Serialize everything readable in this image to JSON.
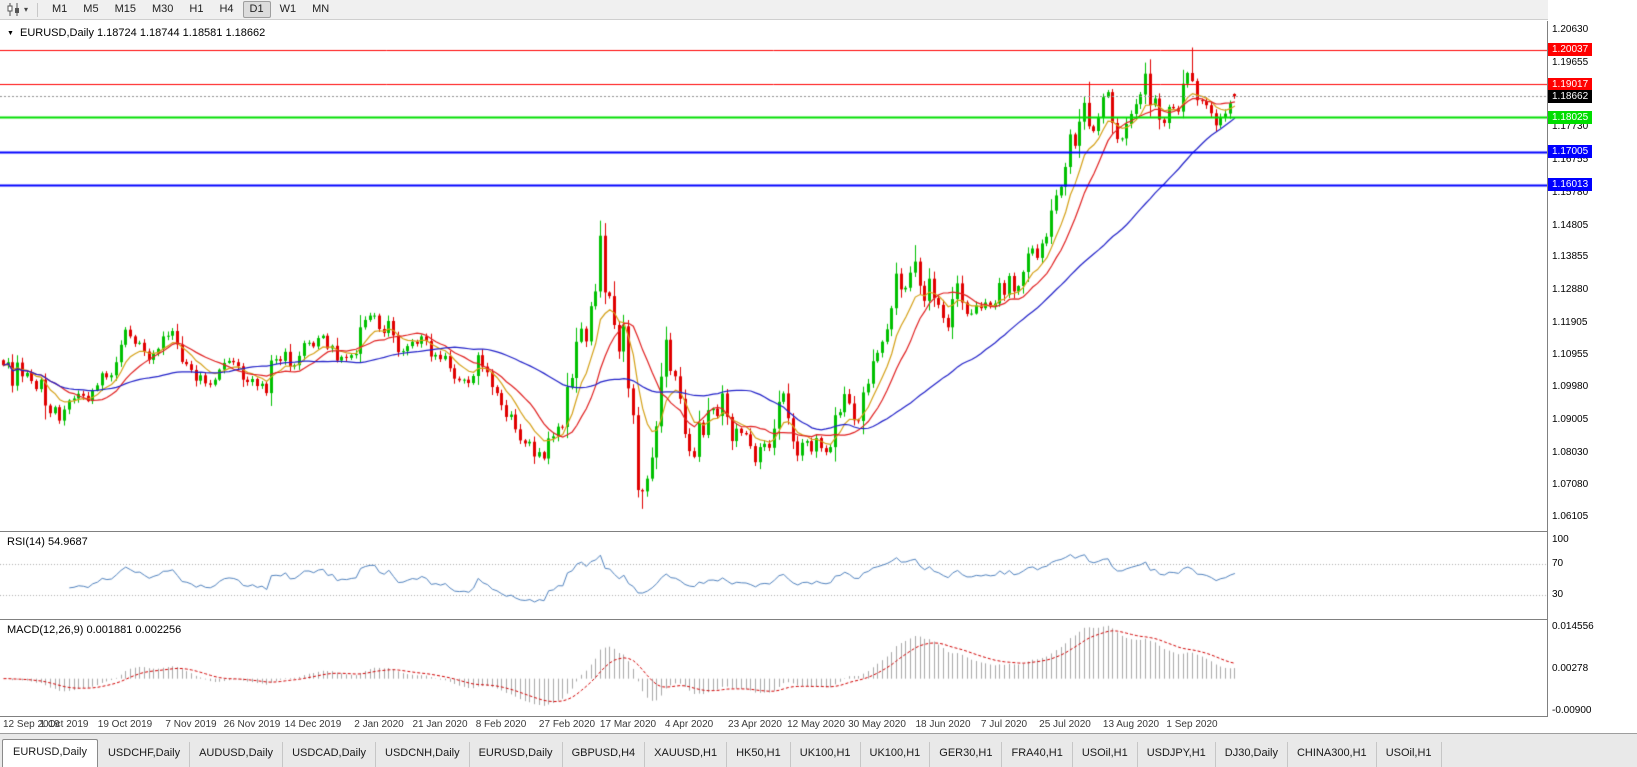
{
  "toolbar": {
    "chart_icon": "candlestick-chart",
    "caret_glyph": "▾",
    "timeframes": [
      "M1",
      "M5",
      "M15",
      "M30",
      "H1",
      "H4",
      "D1",
      "W1",
      "MN"
    ],
    "active_timeframe": "D1"
  },
  "tabs": {
    "active_index": 0,
    "items": [
      "EURUSD,Daily",
      "USDCHF,Daily",
      "AUDUSD,Daily",
      "USDCAD,Daily",
      "USDCNH,Daily",
      "EURUSD,Daily",
      "GBPUSD,H4",
      "XAUUSD,H1",
      "HK50,H1",
      "UK100,H1",
      "UK100,H1",
      "GER30,H1",
      "FRA40,H1",
      "USOil,H1",
      "USDJPY,H1",
      "DJ30,Daily",
      "CHINA300,H1",
      "USOil,H1"
    ]
  },
  "chart_data": {
    "type": "candlestick",
    "symbol": "EURUSD",
    "period": "Daily",
    "collapse_glyph": "▼",
    "header_text": "EURUSD,Daily 1.18724 1.18744 1.18581 1.18662",
    "current": {
      "open": 1.18724,
      "high": 1.18744,
      "low": 1.18581,
      "close": 1.18662
    },
    "ylim": [
      1.209,
      1.057
    ],
    "bar_width": 4.7,
    "x_offset": 3,
    "up_color": "#00C000",
    "down_color": "#E00000",
    "y_ticks": [
      "1.20630",
      "1.19655",
      "1.18680",
      "1.17730",
      "1.16755",
      "1.15780",
      "1.14805",
      "1.13855",
      "1.12880",
      "1.11905",
      "1.10955",
      "1.09980",
      "1.09005",
      "1.08030",
      "1.07080",
      "1.06105"
    ],
    "x_labels": [
      {
        "i": 0,
        "label": "12 Sep 2019"
      },
      {
        "i": 13,
        "label": "1 Oct 2019"
      },
      {
        "i": 26,
        "label": "19 Oct 2019"
      },
      {
        "i": 40,
        "label": "7 Nov 2019"
      },
      {
        "i": 53,
        "label": "26 Nov 2019"
      },
      {
        "i": 66,
        "label": "14 Dec 2019"
      },
      {
        "i": 80,
        "label": "2 Jan 2020"
      },
      {
        "i": 93,
        "label": "21 Jan 2020"
      },
      {
        "i": 106,
        "label": "8 Feb 2020"
      },
      {
        "i": 120,
        "label": "27 Feb 2020"
      },
      {
        "i": 133,
        "label": "17 Mar 2020"
      },
      {
        "i": 146,
        "label": "4 Apr 2020"
      },
      {
        "i": 160,
        "label": "23 Apr 2020"
      },
      {
        "i": 173,
        "label": "12 May 2020"
      },
      {
        "i": 186,
        "label": "30 May 2020"
      },
      {
        "i": 200,
        "label": "18 Jun 2020"
      },
      {
        "i": 213,
        "label": "7 Jul 2020"
      },
      {
        "i": 226,
        "label": "25 Jul 2020"
      },
      {
        "i": 240,
        "label": "13 Aug 2020"
      },
      {
        "i": 253,
        "label": "1 Sep 2020"
      }
    ],
    "hlines": [
      {
        "price": 1.20037,
        "label": "1.20037",
        "color": "#FF0000",
        "width": 1
      },
      {
        "price": 1.19017,
        "label": "1.19017",
        "color": "#FF0000",
        "width": 1
      },
      {
        "price": 1.18025,
        "label": "1.18025",
        "color": "#00DD00",
        "width": 2
      },
      {
        "price": 1.17005,
        "label": "1.17005",
        "color": "#0000FF",
        "width": 2
      },
      {
        "price": 1.16013,
        "label": "1.16013",
        "color": "#0000FF",
        "width": 2
      }
    ],
    "bid": {
      "price": 1.18662,
      "label": "1.18662",
      "tag_color": "#000000",
      "line_color": "#909090"
    },
    "mas": [
      {
        "kind": "ema",
        "period": 8,
        "color": "#D4A017"
      },
      {
        "kind": "sma",
        "period": 13,
        "color": "#E02020"
      },
      {
        "kind": "sma",
        "period": 40,
        "color": "#2020C8"
      }
    ],
    "candles": {
      "seed": 7,
      "closes": [
        1.1064,
        1.1073,
        1.1003,
        1.1072,
        1.1031,
        1.1041,
        1.1017,
        1.0993,
        1.1021,
        1.0944,
        1.0921,
        1.0939,
        1.0899,
        1.0932,
        1.0959,
        1.0965,
        1.0979,
        1.0973,
        1.0957,
        1.0989,
        1.1004,
        1.104,
        1.1028,
        1.1034,
        1.1073,
        1.1125,
        1.117,
        1.115,
        1.1128,
        1.1131,
        1.1105,
        1.108,
        1.1099,
        1.1113,
        1.115,
        1.1152,
        1.1166,
        1.1126,
        1.1074,
        1.1067,
        1.105,
        1.1018,
        1.1034,
        1.101,
        1.1006,
        1.1021,
        1.1051,
        1.1071,
        1.1077,
        1.1073,
        1.1061,
        1.1021,
        1.1014,
        1.1023,
        1.1002,
        1.1009,
        1.0981,
        1.1078,
        1.1082,
        1.1077,
        1.1104,
        1.106,
        1.1064,
        1.1092,
        1.113,
        1.1131,
        1.112,
        1.1145,
        1.1152,
        1.1114,
        1.1122,
        1.1078,
        1.1089,
        1.1086,
        1.1094,
        1.1098,
        1.1177,
        1.1199,
        1.1212,
        1.1212,
        1.1172,
        1.116,
        1.1196,
        1.1153,
        1.1103,
        1.1106,
        1.1121,
        1.1134,
        1.1128,
        1.115,
        1.1136,
        1.109,
        1.1095,
        1.1082,
        1.1092,
        1.1055,
        1.1024,
        1.1019,
        1.1021,
        1.1011,
        1.1032,
        1.1094,
        1.106,
        1.1043,
        1.0999,
        1.0981,
        1.0945,
        1.091,
        1.0917,
        1.0873,
        1.084,
        1.0831,
        1.0836,
        1.0792,
        1.0805,
        1.0786,
        1.0846,
        1.0852,
        1.0881,
        1.088,
        1.0999,
        1.1026,
        1.1134,
        1.1173,
        1.1135,
        1.124,
        1.1284,
        1.145,
        1.1281,
        1.127,
        1.1184,
        1.1105,
        1.118,
        1.0995,
        1.0915,
        1.0692,
        1.0688,
        1.0726,
        1.0789,
        1.0882,
        1.103,
        1.114,
        1.1047,
        1.1031,
        1.0964,
        1.0859,
        1.0808,
        1.0791,
        1.0893,
        1.0856,
        1.093,
        1.0935,
        1.0913,
        1.098,
        1.091,
        1.0838,
        1.0875,
        1.0862,
        1.0858,
        1.0823,
        1.0775,
        1.082,
        1.083,
        1.0818,
        1.0875,
        1.0955,
        1.098,
        1.0906,
        1.0837,
        1.0795,
        1.0833,
        1.0838,
        1.0807,
        1.0847,
        1.0817,
        1.0805,
        1.082,
        1.0915,
        1.0924,
        1.0978,
        1.095,
        1.09,
        1.0898,
        1.0983,
        1.1009,
        1.1076,
        1.1101,
        1.1134,
        1.1171,
        1.1234,
        1.1337,
        1.129,
        1.1295,
        1.134,
        1.1373,
        1.1301,
        1.1256,
        1.1322,
        1.1264,
        1.1244,
        1.1205,
        1.1177,
        1.1261,
        1.1308,
        1.1251,
        1.1217,
        1.1218,
        1.1242,
        1.1234,
        1.1251,
        1.1239,
        1.1248,
        1.1309,
        1.1274,
        1.133,
        1.1284,
        1.13,
        1.1342,
        1.1397,
        1.1412,
        1.1384,
        1.1427,
        1.1447,
        1.1525,
        1.157,
        1.1596,
        1.1655,
        1.1752,
        1.1718,
        1.179,
        1.1846,
        1.1776,
        1.1762,
        1.1803,
        1.1863,
        1.1878,
        1.1786,
        1.1738,
        1.174,
        1.1783,
        1.1813,
        1.1842,
        1.1871,
        1.1933,
        1.1839,
        1.1859,
        1.1796,
        1.1786,
        1.1834,
        1.183,
        1.182,
        1.1903,
        1.1935,
        1.1911,
        1.1854,
        1.1852,
        1.1839,
        1.1815,
        1.1779,
        1.1802,
        1.1814,
        1.1845,
        1.18662
      ],
      "overrides": {
        "127": {
          "high": 1.1495
        },
        "135": {
          "low": 1.067
        },
        "136": {
          "low": 1.0636
        },
        "194": {
          "high": 1.1422
        },
        "231": {
          "high": 1.1909
        },
        "243": {
          "high": 1.1966
        },
        "253": {
          "high": 1.2011
        },
        "262": {
          "open": 1.18724,
          "high": 1.18744,
          "low": 1.18581,
          "close": 1.18662
        }
      }
    },
    "rsi": {
      "label": "RSI(14) 54.9687",
      "period": 14,
      "value": 54.9687,
      "levels": [
        70,
        30
      ],
      "axis_labels": [
        "100",
        "70",
        "30"
      ],
      "ylim": [
        110,
        0
      ],
      "color": "#4F81BD",
      "level_color": "#ADADAD"
    },
    "macd": {
      "label": "MACD(12,26,9) 0.001881 0.002256",
      "fast": 12,
      "slow": 26,
      "signal": 9,
      "macd_value": 0.001881,
      "signal_value": 0.002256,
      "axis_labels": [
        "0.014556",
        "0.00278",
        "-0.00900"
      ],
      "ylim": [
        0.0165,
        -0.0105
      ],
      "hist_color": "#A8A8A8",
      "signal_color": "#D00000"
    }
  }
}
